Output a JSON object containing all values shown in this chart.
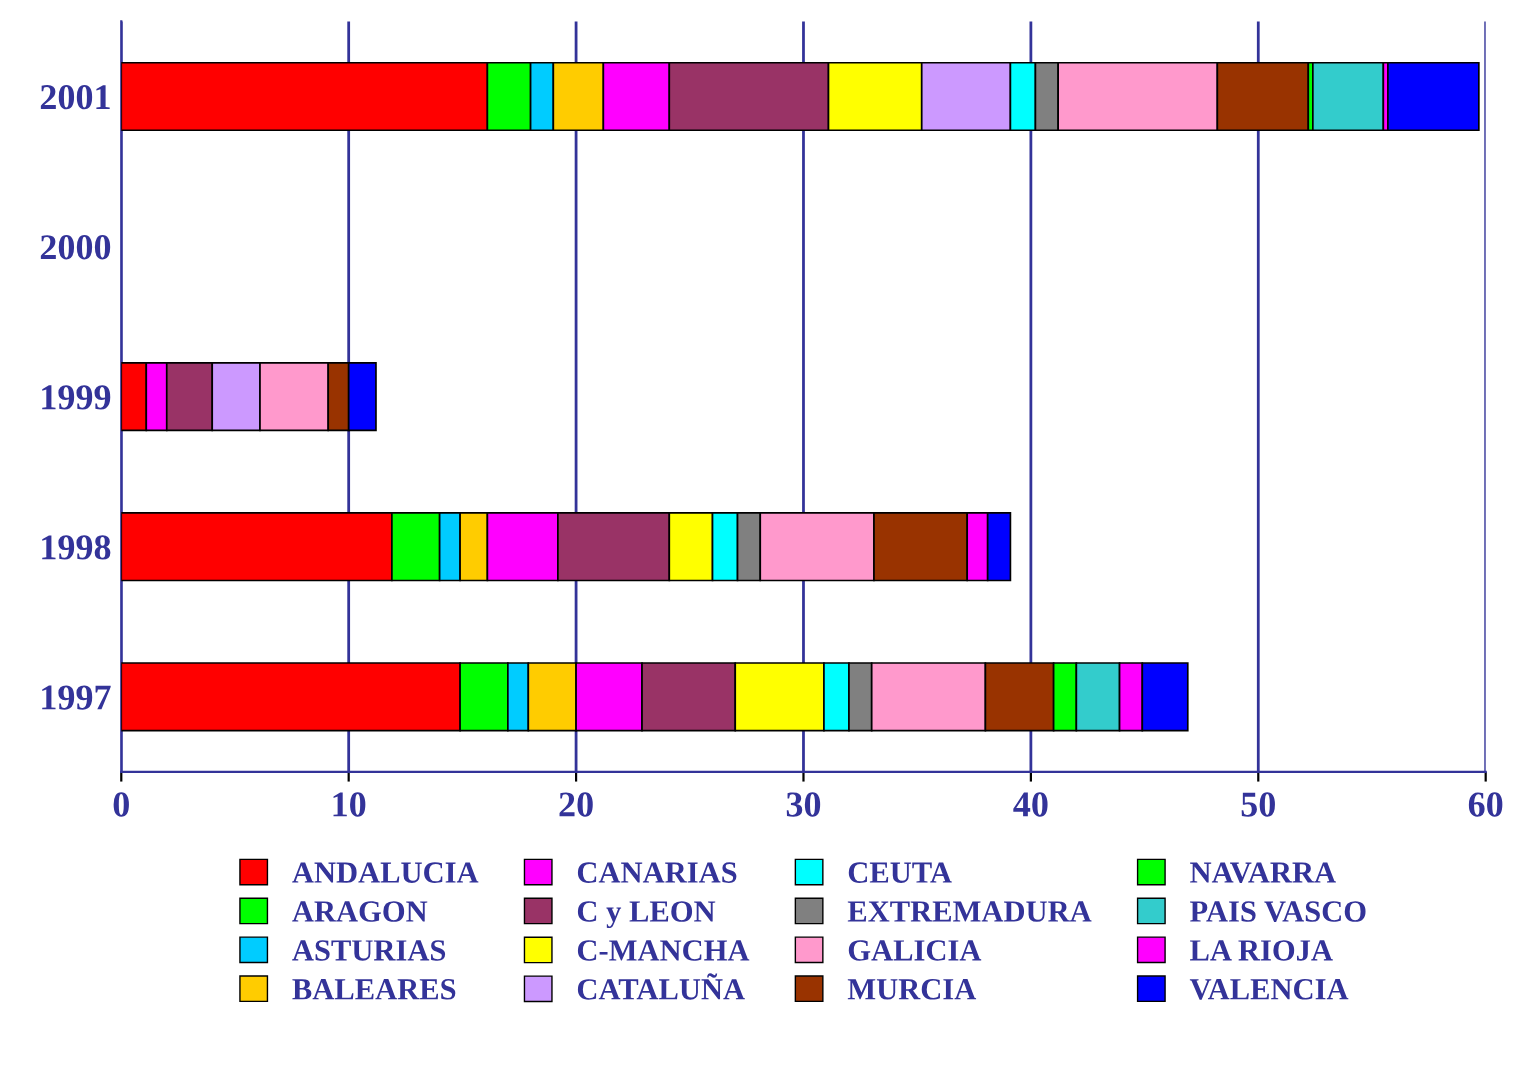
{
  "chart_data": {
    "type": "bar",
    "orientation": "horizontal",
    "stacked": true,
    "categories": [
      "2001",
      "2000",
      "1999",
      "1998",
      "1997"
    ],
    "xlim": [
      0,
      60
    ],
    "xticks": [
      0,
      10,
      20,
      30,
      40,
      50,
      60
    ],
    "grid": "x",
    "legend": "bottom",
    "series": [
      {
        "name": "ANDALUCIA",
        "color": "#ff0000",
        "values": [
          16.1,
          null,
          1.1,
          11.9,
          14.9
        ]
      },
      {
        "name": "ARAGON",
        "color": "#00ff00",
        "values": [
          1.9,
          null,
          null,
          2.1,
          2.1
        ]
      },
      {
        "name": "ASTURIAS",
        "color": "#00ccff",
        "values": [
          1.0,
          null,
          null,
          0.9,
          0.9
        ]
      },
      {
        "name": "BALEARES",
        "color": "#ffcc00",
        "values": [
          2.2,
          null,
          null,
          1.2,
          2.1
        ]
      },
      {
        "name": "CANARIAS",
        "color": "#ff00ff",
        "values": [
          2.9,
          null,
          0.9,
          3.1,
          2.9
        ]
      },
      {
        "name": "C y LEON",
        "color": "#993366",
        "values": [
          7.0,
          null,
          2.0,
          4.9,
          4.1
        ]
      },
      {
        "name": "C-MANCHA",
        "color": "#ffff00",
        "values": [
          4.1,
          null,
          null,
          1.9,
          3.9
        ]
      },
      {
        "name": "CATALUÑA",
        "color": "#cc99ff",
        "values": [
          3.9,
          null,
          2.1,
          null,
          null
        ]
      },
      {
        "name": "CEUTA",
        "color": "#00ffff",
        "values": [
          1.1,
          null,
          null,
          1.1,
          1.1
        ]
      },
      {
        "name": "EXTREMADURA",
        "color": "#808080",
        "values": [
          1.0,
          null,
          null,
          1.0,
          1.0
        ]
      },
      {
        "name": "GALICIA",
        "color": "#ff99cc",
        "values": [
          7.0,
          null,
          3.0,
          5.0,
          5.0
        ]
      },
      {
        "name": "MURCIA",
        "color": "#993300",
        "values": [
          4.0,
          null,
          0.9,
          4.1,
          3.0
        ]
      },
      {
        "name": "NAVARRA",
        "color": "#00ff00",
        "values": [
          0.2,
          null,
          null,
          null,
          1.0
        ]
      },
      {
        "name": "PAIS VASCO",
        "color": "#33cccc",
        "values": [
          3.1,
          null,
          null,
          null,
          1.9
        ]
      },
      {
        "name": "LA RIOJA",
        "color": "#ff00ff",
        "values": [
          0.2,
          null,
          null,
          0.9,
          1.0
        ]
      },
      {
        "name": "VALENCIA",
        "color": "#0000ff",
        "values": [
          4.0,
          null,
          1.2,
          1.0,
          2.0
        ]
      }
    ]
  }
}
